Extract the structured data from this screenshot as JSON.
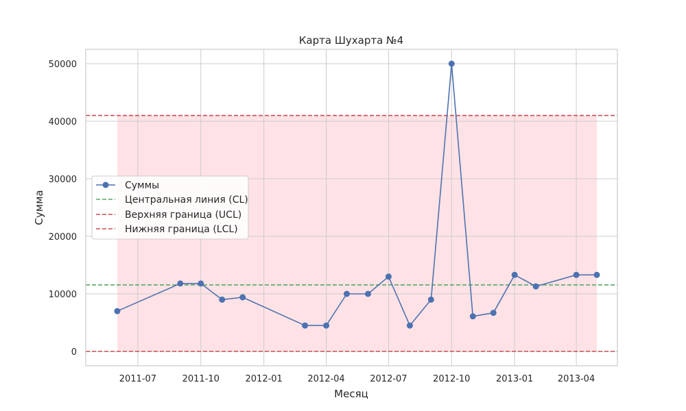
{
  "chart_data": {
    "type": "line",
    "title": "Карта Шухарта №4",
    "xlabel": "Месяц",
    "ylabel": "Сумма",
    "x_tick_labels": [
      "2011-07",
      "2011-10",
      "2012-01",
      "2012-04",
      "2012-07",
      "2012-10",
      "2013-01",
      "2013-04"
    ],
    "x_tick_dates": [
      "2011-07-01",
      "2011-10-01",
      "2012-01-01",
      "2012-04-01",
      "2012-07-01",
      "2012-10-01",
      "2013-01-01",
      "2013-04-01"
    ],
    "y_ticks": [
      0,
      10000,
      20000,
      30000,
      40000,
      50000
    ],
    "xlim": [
      "2011-04-16",
      "2013-05-31"
    ],
    "ylim": [
      -2500,
      52500
    ],
    "grid": true,
    "legend_position": "center-left",
    "series": [
      {
        "name": "Суммы",
        "color": "#4c72b0",
        "marker": "circle",
        "x": [
          "2011-06-01",
          "2011-09-01",
          "2011-10-01",
          "2011-11-01",
          "2011-12-01",
          "2012-03-01",
          "2012-04-01",
          "2012-05-01",
          "2012-06-01",
          "2012-07-01",
          "2012-08-01",
          "2012-09-01",
          "2012-10-01",
          "2012-11-01",
          "2012-12-01",
          "2013-01-01",
          "2013-02-01",
          "2013-04-01",
          "2013-05-01"
        ],
        "y": [
          7000,
          11800,
          11800,
          9000,
          9400,
          4500,
          4500,
          10000,
          10000,
          13000,
          4500,
          9000,
          50000,
          6100,
          6700,
          13300,
          11300,
          13300,
          13300
        ]
      }
    ],
    "lines": [
      {
        "name": "Центральная линия (CL)",
        "value": 11560,
        "color": "#55a868",
        "style": "dashed"
      },
      {
        "name": "Верхняя граница (UCL)",
        "value": 41000,
        "color": "#c44e52",
        "style": "dashed"
      },
      {
        "name": "Нижняя граница (LCL)",
        "value": 0,
        "color": "#c44e52",
        "style": "dashed"
      }
    ],
    "band": {
      "from": 0,
      "to": 41000,
      "x_start": "2011-06-01",
      "x_end": "2013-05-01",
      "color": "#ffb3ba"
    }
  }
}
